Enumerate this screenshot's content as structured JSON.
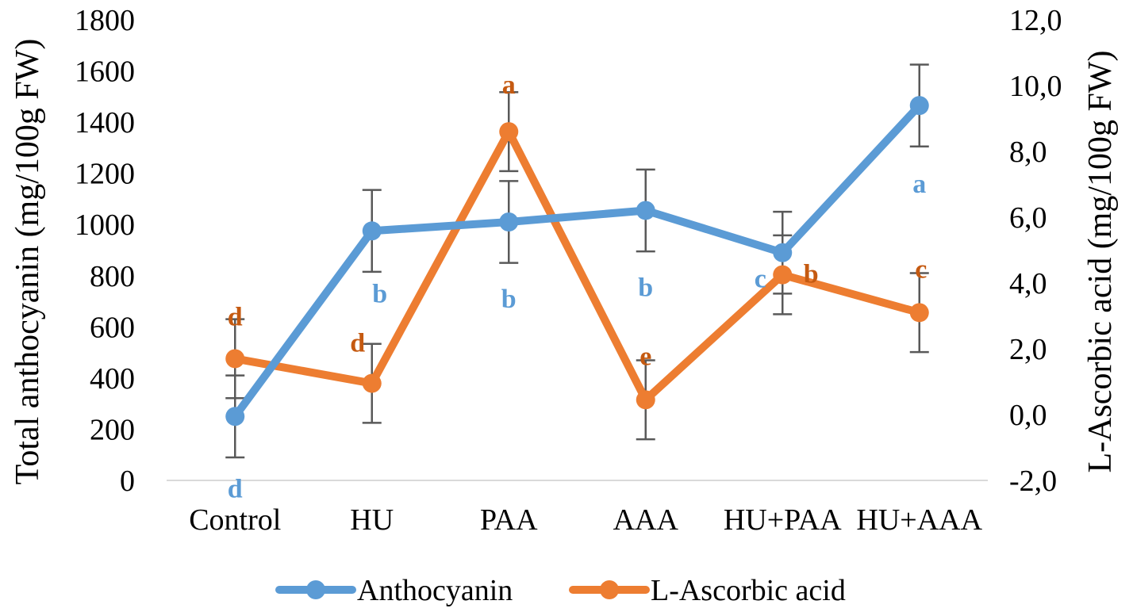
{
  "chart_data": {
    "type": "line",
    "categories": [
      "Control",
      "HU",
      "PAA",
      "AAA",
      "HU+PAA",
      "HU+AAA"
    ],
    "y_left": {
      "label": "Total anthocyanin (mg/100g FW)",
      "min": 0,
      "max": 1800,
      "step": 200,
      "ticks": [
        "0",
        "200",
        "400",
        "600",
        "800",
        "1000",
        "1200",
        "1400",
        "1600",
        "1800"
      ]
    },
    "y_right": {
      "label": "L-Ascorbic acid (mg/100g FW)",
      "min": -2,
      "max": 12,
      "step": 2,
      "ticks": [
        "-2,0",
        "0,0",
        "2,0",
        "4,0",
        "6,0",
        "8,0",
        "10,0",
        "12,0"
      ]
    },
    "series": [
      {
        "name": "Anthocyanin",
        "axis": "left",
        "color": "#5b9bd5",
        "values": [
          250,
          975,
          1010,
          1055,
          890,
          1465
        ],
        "error": [
          160,
          160,
          160,
          160,
          160,
          160
        ],
        "letters": [
          "d",
          "b",
          "b",
          "b",
          "c",
          "a"
        ]
      },
      {
        "name": "L-Ascorbic acid",
        "axis": "right",
        "color": "#ed7d31",
        "values": [
          1.7,
          0.95,
          8.6,
          0.45,
          4.25,
          3.1
        ],
        "error": [
          1.2,
          1.2,
          1.2,
          1.2,
          1.2,
          1.2
        ],
        "letters": [
          "d",
          "d",
          "a",
          "e",
          "b",
          "c"
        ],
        "letter_color": "#c55a11"
      }
    ],
    "legend_position": "bottom",
    "grid": false
  }
}
